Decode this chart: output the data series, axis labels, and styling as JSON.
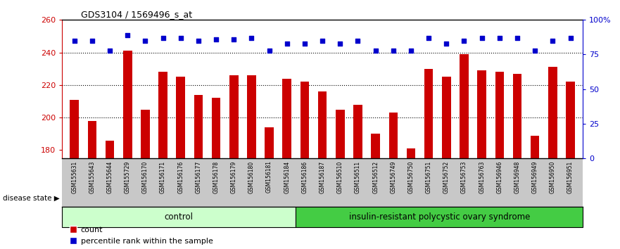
{
  "title": "GDS3104 / 1569496_s_at",
  "samples": [
    "GSM155631",
    "GSM155643",
    "GSM155644",
    "GSM155729",
    "GSM156170",
    "GSM156171",
    "GSM156176",
    "GSM156177",
    "GSM156178",
    "GSM156179",
    "GSM156180",
    "GSM156181",
    "GSM156184",
    "GSM156186",
    "GSM156187",
    "GSM156510",
    "GSM156511",
    "GSM156512",
    "GSM156749",
    "GSM156750",
    "GSM156751",
    "GSM156752",
    "GSM156753",
    "GSM156763",
    "GSM156946",
    "GSM156948",
    "GSM156949",
    "GSM156950",
    "GSM156951"
  ],
  "bar_values": [
    211,
    198,
    186,
    241,
    205,
    228,
    225,
    214,
    212,
    226,
    226,
    194,
    224,
    222,
    216,
    205,
    208,
    190,
    203,
    181,
    230,
    225,
    239,
    229,
    228,
    227,
    189,
    231,
    222
  ],
  "dot_values": [
    85,
    85,
    78,
    89,
    85,
    87,
    87,
    85,
    86,
    86,
    87,
    78,
    83,
    83,
    85,
    83,
    85,
    78,
    78,
    78,
    87,
    83,
    85,
    87,
    87,
    87,
    78,
    85,
    87
  ],
  "control_count": 13,
  "ylim_left": [
    175,
    260
  ],
  "ylim_right": [
    0,
    100
  ],
  "yticks_left": [
    180,
    200,
    220,
    240,
    260
  ],
  "yticks_right": [
    0,
    25,
    50,
    75,
    100
  ],
  "bar_color": "#CC0000",
  "dot_color": "#0000CC",
  "control_label": "control",
  "disease_label": "insulin-resistant polycystic ovary syndrome",
  "state_label": "disease state",
  "legend_bar": "count",
  "legend_dot": "percentile rank within the sample",
  "control_bg": "#ccffcc",
  "disease_bg": "#44cc44",
  "tick_bg": "#c8c8c8"
}
